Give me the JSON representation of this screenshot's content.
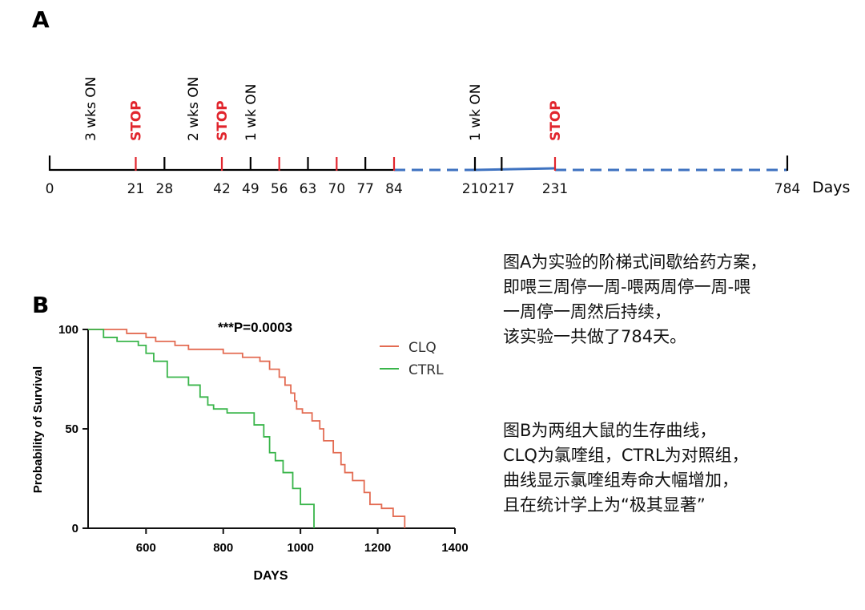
{
  "panel_a": {
    "label": "A",
    "axis_unit": "Days",
    "ticks": [
      {
        "day": 0,
        "label": "0",
        "color": "#000000"
      },
      {
        "day": 21,
        "label": "21",
        "color": "#e1252d"
      },
      {
        "day": 28,
        "label": "28",
        "color": "#000000"
      },
      {
        "day": 42,
        "label": "42",
        "color": "#e1252d"
      },
      {
        "day": 49,
        "label": "49",
        "color": "#000000"
      },
      {
        "day": 56,
        "label": "56",
        "color": "#e1252d"
      },
      {
        "day": 63,
        "label": "63",
        "color": "#000000"
      },
      {
        "day": 70,
        "label": "70",
        "color": "#e1252d"
      },
      {
        "day": 77,
        "label": "77",
        "color": "#000000"
      },
      {
        "day": 84,
        "label": "84",
        "color": "#e1252d"
      },
      {
        "day": 210,
        "label": "210",
        "color": "#000000"
      },
      {
        "day": 217,
        "label": "217",
        "color": "#000000"
      },
      {
        "day": 231,
        "label": "231",
        "color": "#e1252d"
      },
      {
        "day": 784,
        "label": "784",
        "color": "#000000"
      }
    ],
    "events": [
      {
        "day": 10,
        "label": "3 wks ON",
        "color": "#000000"
      },
      {
        "day": 21,
        "label": "STOP",
        "color": "#e1252d"
      },
      {
        "day": 35,
        "label": "2 wks ON",
        "color": "#000000"
      },
      {
        "day": 42,
        "label": "STOP",
        "color": "#e1252d"
      },
      {
        "day": 49,
        "label": "1 wk ON",
        "color": "#000000"
      },
      {
        "day": 210,
        "label": "1 wk ON",
        "color": "#000000"
      },
      {
        "day": 231,
        "label": "STOP",
        "color": "#e1252d"
      }
    ],
    "colors": {
      "solid": "#000000",
      "dashed": "#3e72c0",
      "stop": "#e1252d"
    }
  },
  "panel_b": {
    "label": "B",
    "annotation": "***P=0.0003"
  },
  "chart_data": {
    "type": "line",
    "step": true,
    "xlabel": "DAYS",
    "ylabel": "Probability of Survival",
    "xlim": [
      450,
      1400
    ],
    "ylim": [
      0,
      100
    ],
    "xticks": [
      "600",
      "800",
      "1000",
      "1200",
      "1400"
    ],
    "yticks": [
      "0",
      "50",
      "100"
    ],
    "legend_position": "top-right",
    "series": [
      {
        "name": "CLQ",
        "color": "#e36b52",
        "x": [
          450,
          550,
          600,
          625,
          675,
          710,
          800,
          850,
          895,
          920,
          945,
          960,
          975,
          985,
          990,
          1005,
          1030,
          1050,
          1060,
          1085,
          1105,
          1115,
          1135,
          1165,
          1180,
          1210,
          1240,
          1270
        ],
        "y": [
          100,
          98,
          96,
          94,
          92,
          90,
          88,
          86,
          84,
          80,
          76,
          72,
          68,
          64,
          60,
          58,
          54,
          50,
          44,
          38,
          32,
          28,
          24,
          18,
          12,
          10,
          6,
          0
        ]
      },
      {
        "name": "CTRL",
        "color": "#39b54a",
        "x": [
          450,
          490,
          525,
          580,
          600,
          620,
          655,
          710,
          740,
          760,
          775,
          810,
          880,
          905,
          920,
          935,
          955,
          980,
          1000,
          1035
        ],
        "y": [
          100,
          96,
          94,
          92,
          88,
          84,
          76,
          72,
          66,
          62,
          60,
          58,
          52,
          46,
          38,
          34,
          28,
          20,
          12,
          0
        ]
      }
    ]
  },
  "description": {
    "para1": [
      "图A为实验的阶梯式间歇给药方案，",
      "即喂三周停一周-喂两周停一周-喂",
      "一周停一周然后持续，",
      "该实验一共做了784天。"
    ],
    "para2": [
      "图B为两组大鼠的生存曲线，",
      "CLQ为氯喹组，CTRL为对照组，",
      "曲线显示氯喹组寿命大幅增加，",
      "且在统计学上为“极其显著”"
    ]
  }
}
